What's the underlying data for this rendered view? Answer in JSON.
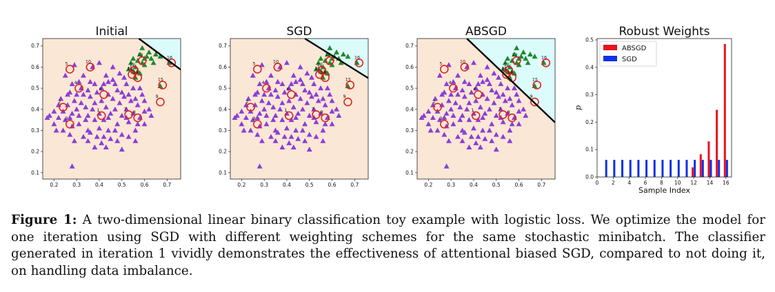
{
  "scatter_panels": [
    {
      "title": "Initial",
      "boundary": [
        [
          0.575,
          0.735
        ],
        [
          0.76,
          0.588
        ]
      ]
    },
    {
      "title": "SGD",
      "boundary": [
        [
          0.48,
          0.735
        ],
        [
          0.76,
          0.548
        ]
      ]
    },
    {
      "title": "ABSGD",
      "boundary": [
        [
          0.37,
          0.735
        ],
        [
          0.76,
          0.338
        ]
      ]
    }
  ],
  "scatter_axes": {
    "xlim": [
      0.15,
      0.76
    ],
    "ylim": [
      0.07,
      0.735
    ],
    "xticks": [
      "0.2",
      "0.3",
      "0.4",
      "0.5",
      "0.6",
      "0.7"
    ],
    "yticks": [
      "0.1",
      "0.2",
      "0.3",
      "0.4",
      "0.5",
      "0.6",
      "0.7"
    ]
  },
  "colors": {
    "class_majority": "#8a3fd6",
    "class_minority": "#1e8a2e",
    "region_majority": "#fbe7d6",
    "region_minority": "#dcfbfb",
    "circle": "#e02020",
    "bar_absgd": "#e8141e",
    "bar_sgd": "#1230e8"
  },
  "chart_data": [
    {
      "type": "scatter",
      "title": "Initial",
      "note": "Same points in all three scatter panels",
      "series": [
        {
          "class": "majority (purple)",
          "points": [
            [
              0.17,
              0.36
            ],
            [
              0.18,
              0.37
            ],
            [
              0.2,
              0.33
            ],
            [
              0.21,
              0.3
            ],
            [
              0.2,
              0.39
            ],
            [
              0.22,
              0.36
            ],
            [
              0.22,
              0.42
            ],
            [
              0.23,
              0.45
            ],
            [
              0.24,
              0.39
            ],
            [
              0.25,
              0.35
            ],
            [
              0.26,
              0.42
            ],
            [
              0.27,
              0.48
            ],
            [
              0.28,
              0.38
            ],
            [
              0.28,
              0.32
            ],
            [
              0.29,
              0.44
            ],
            [
              0.3,
              0.4
            ],
            [
              0.31,
              0.37
            ],
            [
              0.31,
              0.33
            ],
            [
              0.32,
              0.43
            ],
            [
              0.33,
              0.47
            ],
            [
              0.34,
              0.41
            ],
            [
              0.35,
              0.37
            ],
            [
              0.35,
              0.3
            ],
            [
              0.36,
              0.46
            ],
            [
              0.36,
              0.53
            ],
            [
              0.37,
              0.4
            ],
            [
              0.38,
              0.35
            ],
            [
              0.38,
              0.43
            ],
            [
              0.39,
              0.48
            ],
            [
              0.4,
              0.38
            ],
            [
              0.4,
              0.31
            ],
            [
              0.41,
              0.44
            ],
            [
              0.42,
              0.52
            ],
            [
              0.42,
              0.35
            ],
            [
              0.43,
              0.41
            ],
            [
              0.44,
              0.47
            ],
            [
              0.44,
              0.3
            ],
            [
              0.45,
              0.38
            ],
            [
              0.46,
              0.45
            ],
            [
              0.46,
              0.54
            ],
            [
              0.47,
              0.4
            ],
            [
              0.48,
              0.33
            ],
            [
              0.48,
              0.49
            ],
            [
              0.49,
              0.43
            ],
            [
              0.5,
              0.37
            ],
            [
              0.5,
              0.28
            ],
            [
              0.51,
              0.46
            ],
            [
              0.52,
              0.4
            ],
            [
              0.52,
              0.52
            ],
            [
              0.53,
              0.34
            ],
            [
              0.54,
              0.44
            ],
            [
              0.55,
              0.38
            ],
            [
              0.55,
              0.5
            ],
            [
              0.56,
              0.3
            ],
            [
              0.57,
              0.42
            ],
            [
              0.58,
              0.36
            ],
            [
              0.59,
              0.47
            ],
            [
              0.6,
              0.33
            ],
            [
              0.31,
              0.53
            ],
            [
              0.33,
              0.56
            ],
            [
              0.35,
              0.25
            ],
            [
              0.38,
              0.22
            ],
            [
              0.41,
              0.24
            ],
            [
              0.43,
              0.22
            ],
            [
              0.45,
              0.26
            ],
            [
              0.48,
              0.25
            ],
            [
              0.5,
              0.21
            ],
            [
              0.53,
              0.27
            ],
            [
              0.56,
              0.25
            ],
            [
              0.27,
              0.28
            ],
            [
              0.24,
              0.3
            ],
            [
              0.29,
              0.25
            ],
            [
              0.33,
              0.27
            ],
            [
              0.36,
              0.29
            ],
            [
              0.39,
              0.27
            ],
            [
              0.42,
              0.27
            ],
            [
              0.47,
              0.3
            ],
            [
              0.37,
              0.6
            ],
            [
              0.4,
              0.62
            ],
            [
              0.43,
              0.56
            ],
            [
              0.46,
              0.6
            ],
            [
              0.49,
              0.57
            ],
            [
              0.28,
              0.52
            ],
            [
              0.26,
              0.47
            ],
            [
              0.25,
              0.56
            ],
            [
              0.29,
              0.61
            ],
            [
              0.32,
              0.5
            ],
            [
              0.35,
              0.49
            ],
            [
              0.38,
              0.52
            ],
            [
              0.41,
              0.5
            ],
            [
              0.44,
              0.53
            ],
            [
              0.47,
              0.52
            ],
            [
              0.5,
              0.48
            ],
            [
              0.53,
              0.47
            ],
            [
              0.56,
              0.45
            ],
            [
              0.58,
              0.5
            ],
            [
              0.6,
              0.44
            ],
            [
              0.62,
              0.4
            ],
            [
              0.63,
              0.37
            ],
            [
              0.6,
              0.39
            ],
            [
              0.57,
              0.33
            ],
            [
              0.52,
              0.36
            ],
            [
              0.27,
              0.36
            ],
            [
              0.34,
              0.35
            ],
            [
              0.44,
              0.36
            ],
            [
              0.3,
              0.47
            ],
            [
              0.54,
              0.59
            ],
            [
              0.51,
              0.55
            ],
            [
              0.28,
              0.13
            ]
          ]
        },
        {
          "class": "minority (green)",
          "points": [
            [
              0.53,
              0.59
            ],
            [
              0.54,
              0.62
            ],
            [
              0.55,
              0.64
            ],
            [
              0.56,
              0.6
            ],
            [
              0.57,
              0.63
            ],
            [
              0.58,
              0.66
            ],
            [
              0.59,
              0.69
            ],
            [
              0.6,
              0.61
            ],
            [
              0.61,
              0.65
            ],
            [
              0.62,
              0.67
            ],
            [
              0.63,
              0.64
            ],
            [
              0.65,
              0.66
            ],
            [
              0.67,
              0.65
            ],
            [
              0.64,
              0.62
            ],
            [
              0.57,
              0.58
            ],
            [
              0.56,
              0.55
            ],
            [
              0.58,
              0.57
            ],
            [
              0.55,
              0.58
            ],
            [
              0.6,
              0.64
            ],
            [
              0.71,
              0.62
            ],
            [
              0.67,
              0.51
            ],
            [
              0.59,
              0.62
            ]
          ]
        }
      ],
      "highlighted_samples": [
        {
          "id": "1",
          "x": 0.41,
          "y": 0.37
        },
        {
          "id": "2",
          "x": 0.24,
          "y": 0.41
        },
        {
          "id": "3",
          "x": 0.27,
          "y": 0.33
        },
        {
          "id": "4",
          "x": 0.31,
          "y": 0.5
        },
        {
          "id": "5",
          "x": 0.27,
          "y": 0.59
        },
        {
          "id": "6",
          "x": 0.42,
          "y": 0.47
        },
        {
          "id": "7",
          "x": 0.53,
          "y": 0.375
        },
        {
          "id": "8",
          "x": 0.57,
          "y": 0.36
        },
        {
          "id": "9",
          "x": 0.67,
          "y": 0.435
        },
        {
          "id": "10",
          "x": 0.36,
          "y": 0.6
        },
        {
          "id": "11",
          "x": 0.545,
          "y": 0.565
        },
        {
          "id": "12",
          "x": 0.555,
          "y": 0.585
        },
        {
          "id": "13",
          "x": 0.59,
          "y": 0.63
        },
        {
          "id": "14",
          "x": 0.57,
          "y": 0.55
        },
        {
          "id": "15",
          "x": 0.68,
          "y": 0.515
        },
        {
          "id": "16",
          "x": 0.72,
          "y": 0.62
        }
      ],
      "xlim": [
        0.15,
        0.76
      ],
      "ylim": [
        0.07,
        0.735
      ]
    },
    {
      "type": "scatter",
      "title": "SGD",
      "same_points_as": "Initial"
    },
    {
      "type": "scatter",
      "title": "ABSGD",
      "same_points_as": "Initial"
    },
    {
      "type": "bar",
      "title": "Robust Weights",
      "xlabel": "Sample Index",
      "ylabel": "p",
      "xticks": [
        "0",
        "2",
        "4",
        "6",
        "8",
        "10",
        "12",
        "14",
        "16"
      ],
      "yticks": [
        "0.0",
        "0.1",
        "0.2",
        "0.3",
        "0.4",
        "0.5"
      ],
      "xlim": [
        0,
        16.7
      ],
      "ylim": [
        0,
        0.505
      ],
      "legend_position": "top-left",
      "categories": [
        1,
        2,
        3,
        4,
        5,
        6,
        7,
        8,
        9,
        10,
        11,
        12,
        13,
        14,
        15,
        16
      ],
      "series": [
        {
          "name": "ABSGD",
          "values": [
            0,
            0,
            0,
            0,
            0,
            0,
            0,
            0,
            0,
            0,
            0.001,
            0.035,
            0.083,
            0.13,
            0.245,
            0.485
          ]
        },
        {
          "name": "SGD",
          "values": [
            0.0625,
            0.0625,
            0.0625,
            0.0625,
            0.0625,
            0.0625,
            0.0625,
            0.0625,
            0.0625,
            0.0625,
            0.0625,
            0.0625,
            0.0625,
            0.0625,
            0.0625,
            0.0625
          ]
        }
      ]
    }
  ],
  "caption": {
    "label": "Figure 1:",
    "text": "A two-dimensional linear binary classification toy example with logistic loss. We optimize the model for one iteration using SGD with different weighting schemes for the same stochastic minibatch. The classifier generated in iteration 1 vividly demonstrates the effectiveness of attentional biased SGD, compared to not doing it, on handling data imbalance."
  }
}
